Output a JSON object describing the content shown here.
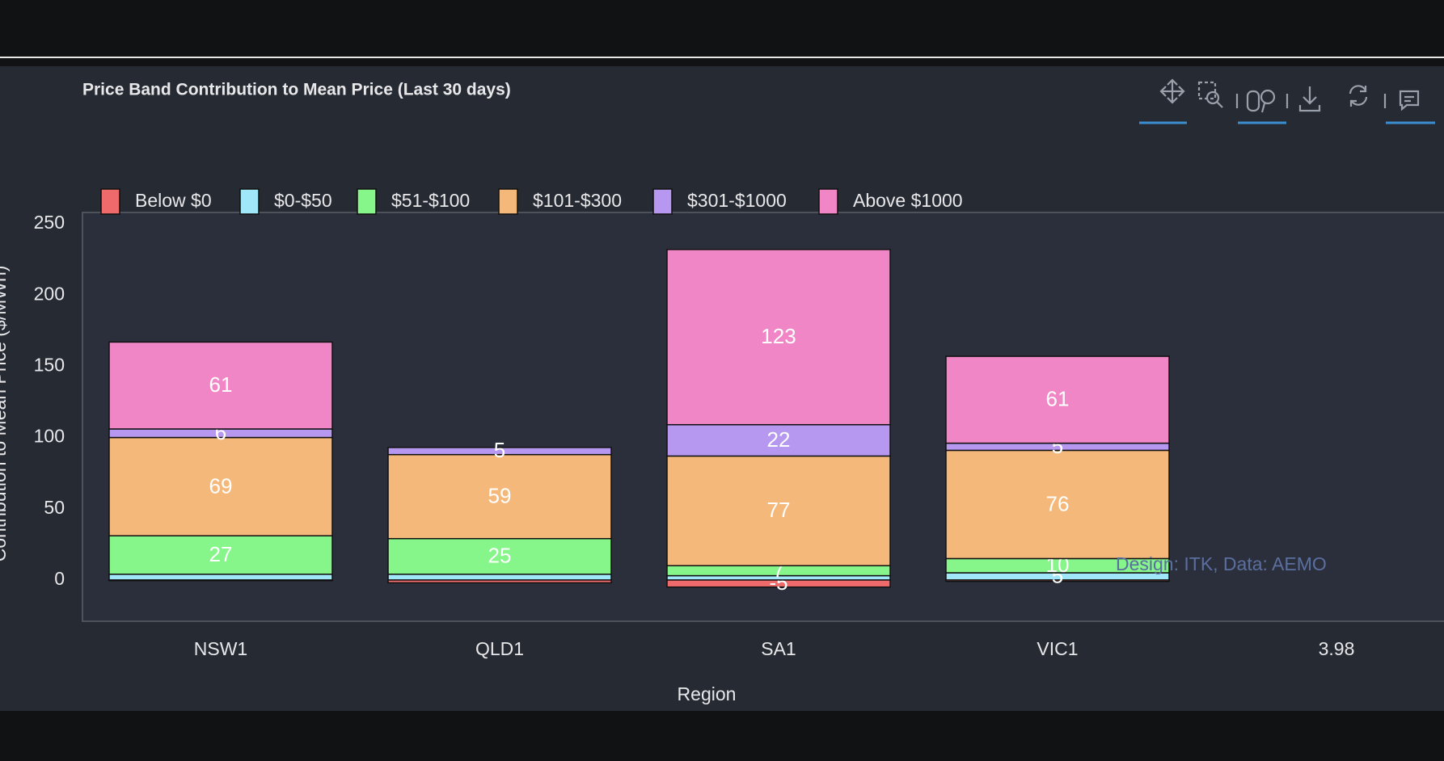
{
  "chart_data": {
    "type": "bar",
    "stacked": true,
    "title": "Price Band Contribution to Mean Price (Last 30 days)",
    "x_label": "Region",
    "y_label": "Contribution to Mean Price ($/MWh)",
    "annotation": "Design: ITK, Data: AEMO",
    "categories": [
      "NSW1",
      "QLD1",
      "SA1",
      "VIC1",
      "3.98"
    ],
    "series": [
      {
        "name": "Below $0",
        "color": "#ef6b6b",
        "values": [
          -0.5,
          -2,
          -5,
          -1,
          null
        ]
      },
      {
        "name": "$0-$50",
        "color": "#a0e7f9",
        "values": [
          4,
          4,
          3,
          5,
          null
        ]
      },
      {
        "name": "$51-$100",
        "color": "#86f68a",
        "values": [
          27,
          25,
          7,
          10,
          null
        ]
      },
      {
        "name": "$101-$300",
        "color": "#f4b97a",
        "values": [
          69,
          59,
          77,
          76,
          null
        ]
      },
      {
        "name": "$301-$1000",
        "color": "#b698f0",
        "values": [
          6,
          5,
          22,
          5,
          null
        ]
      },
      {
        "name": "Above $1000",
        "color": "#f086c6",
        "values": [
          61,
          0,
          123,
          61,
          null
        ]
      }
    ],
    "ylim": [
      -29,
      258
    ],
    "yticks": [
      0,
      50,
      100,
      150,
      200,
      250
    ],
    "grid": false,
    "legend": "top-left"
  }
}
